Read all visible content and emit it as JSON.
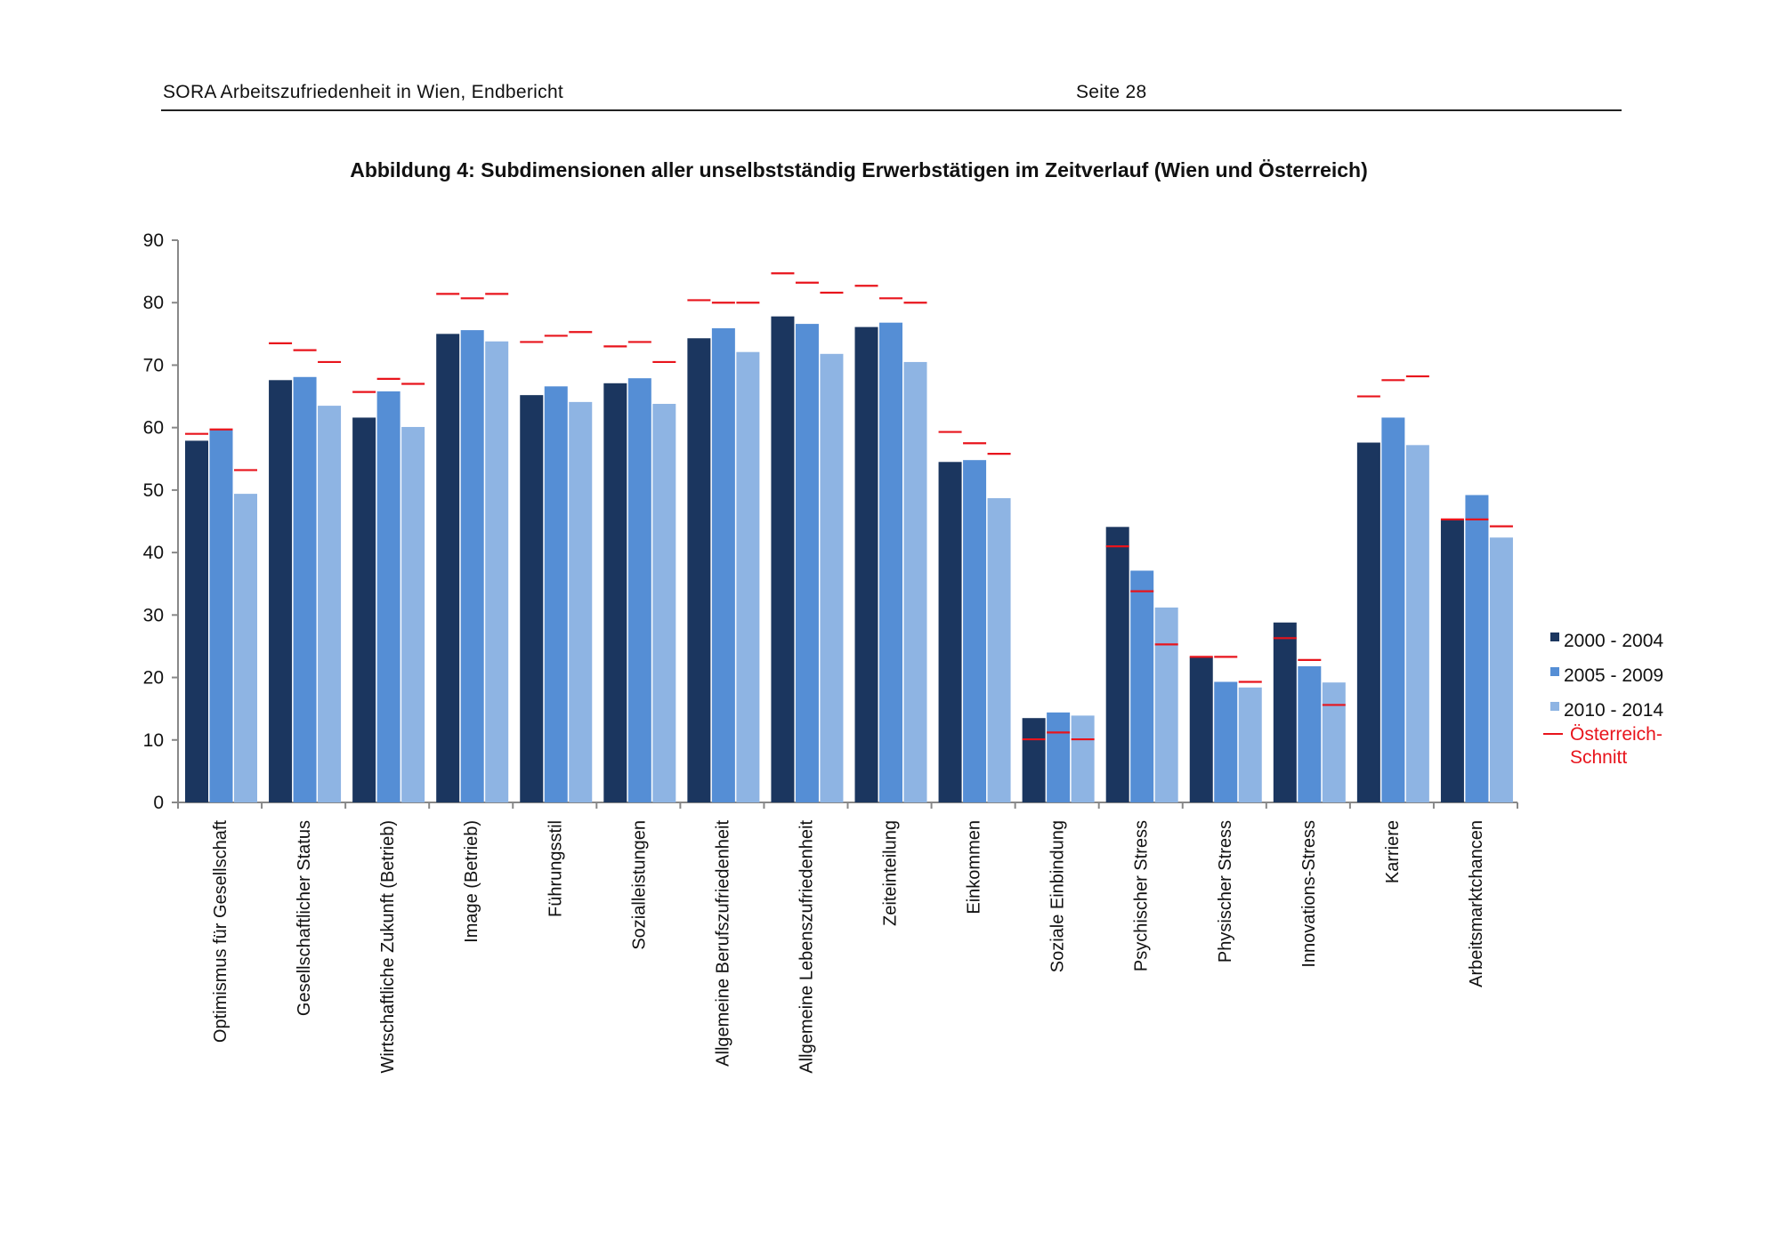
{
  "header": {
    "left": "SORA Arbeitszufriedenheit in Wien, Endbericht",
    "right": "Seite 28"
  },
  "chart_data": {
    "type": "bar",
    "title": "Abbildung 4: Subdimensionen aller unselbstständig Erwerbstätigen  im Zeitverlauf (Wien und Österreich)",
    "xlabel": "",
    "ylabel": "",
    "ylim": [
      0,
      90
    ],
    "yticks": [
      0,
      10,
      20,
      30,
      40,
      50,
      60,
      70,
      80,
      90
    ],
    "grid": false,
    "legend_position": "right",
    "categories": [
      "Optimismus für Gesellschaft",
      "Gesellschaftlicher Status",
      "Wirtschaftliche Zukunft (Betrieb)",
      "Image (Betrieb)",
      "Führungsstil",
      "Sozialleistungen",
      "Allgemeine Berufszufriedenheit",
      "Allgemeine Lebenszufriedenheit",
      "Zeiteinteilung",
      "Einkommen",
      "Soziale Einbindung",
      "Psychischer Stress",
      "Physischer Stress",
      "Innovations-Stress",
      "Karriere",
      "Arbeitsmarktchancen"
    ],
    "series": [
      {
        "name": "2000 - 2004",
        "color": "#1b365f",
        "values": [
          57.9,
          67.6,
          61.6,
          75.0,
          65.2,
          67.1,
          74.3,
          77.8,
          76.1,
          54.5,
          13.5,
          44.1,
          23.3,
          28.8,
          57.6,
          45.2
        ]
      },
      {
        "name": "2005 - 2009",
        "color": "#558ed5",
        "values": [
          59.7,
          68.1,
          65.8,
          75.6,
          66.6,
          67.9,
          75.9,
          76.6,
          76.8,
          54.8,
          14.4,
          37.1,
          19.3,
          21.8,
          61.6,
          49.2
        ]
      },
      {
        "name": "2010 - 2014",
        "color": "#8eb4e3",
        "values": [
          49.4,
          63.5,
          60.1,
          73.8,
          64.1,
          63.8,
          72.1,
          71.8,
          70.5,
          48.7,
          13.9,
          31.2,
          18.4,
          19.2,
          57.2,
          42.4
        ]
      }
    ],
    "reference": {
      "name": "Österreich-Schnitt",
      "name_line1": "Österreich-",
      "name_line2": "Schnitt",
      "color": "#e8141c",
      "values": [
        [
          59.0,
          59.7,
          53.2
        ],
        [
          73.5,
          72.4,
          70.5
        ],
        [
          65.7,
          67.8,
          67.0
        ],
        [
          81.4,
          80.7,
          81.4
        ],
        [
          73.7,
          74.7,
          75.3
        ],
        [
          73.0,
          73.7,
          70.5
        ],
        [
          80.4,
          80.0,
          80.0
        ],
        [
          84.7,
          83.2,
          81.6
        ],
        [
          82.7,
          80.7,
          80.0
        ],
        [
          59.3,
          57.5,
          55.8
        ],
        [
          10.1,
          11.2,
          10.1
        ],
        [
          41.0,
          33.8,
          25.3
        ],
        [
          23.3,
          23.3,
          19.3
        ],
        [
          26.3,
          22.8,
          15.6
        ],
        [
          65.0,
          67.6,
          68.2
        ],
        [
          45.3,
          45.3,
          44.2
        ]
      ]
    }
  }
}
